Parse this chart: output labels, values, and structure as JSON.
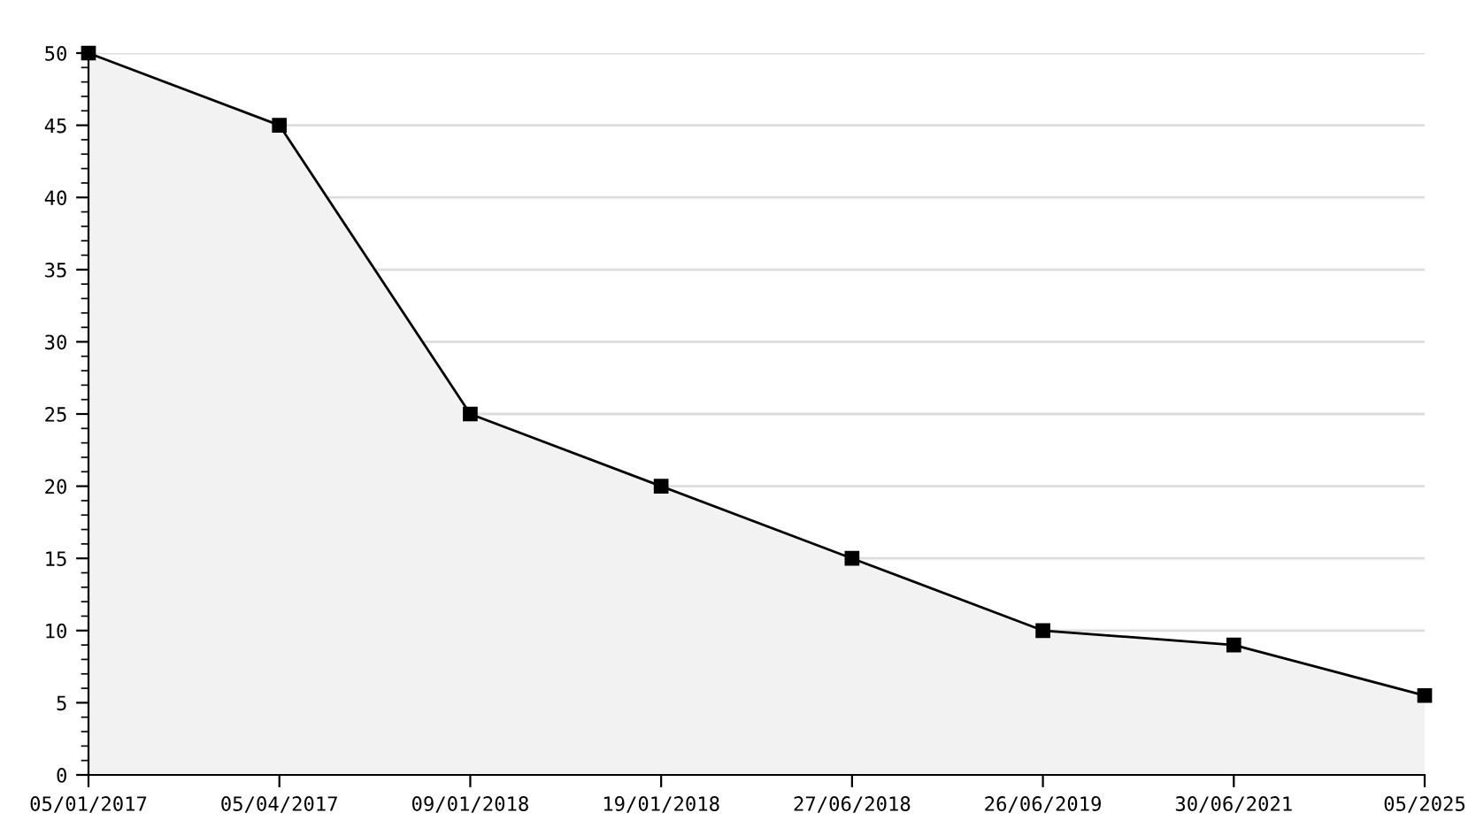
{
  "chart_data": {
    "type": "area",
    "categories": [
      "05/01/2017",
      "05/04/2017",
      "09/01/2018",
      "19/01/2018",
      "27/06/2018",
      "26/06/2019",
      "30/06/2021",
      "05/2025"
    ],
    "series": [
      {
        "color": "#000000",
        "values": [
          50,
          45,
          25,
          20,
          15,
          10,
          9,
          5.5
        ]
      }
    ],
    "ylim": [
      0,
      50
    ],
    "yticks": [
      0,
      5,
      10,
      15,
      20,
      25,
      30,
      35,
      40,
      45,
      50
    ],
    "grid": "y",
    "marker": "square",
    "line_style": "solid",
    "legend": false
  }
}
